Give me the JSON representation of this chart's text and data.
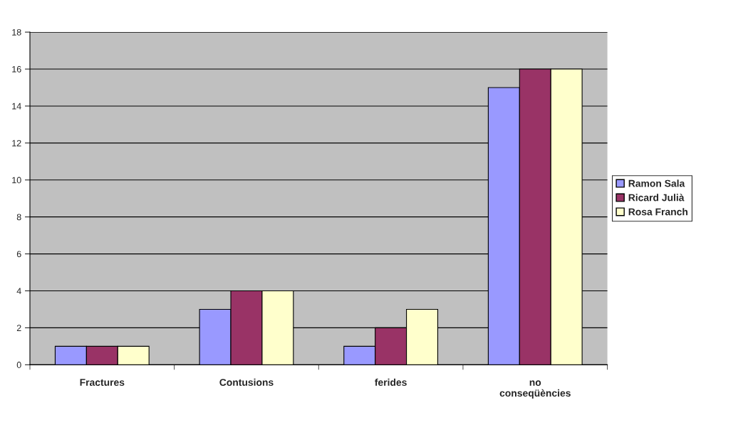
{
  "chart_data": {
    "type": "bar",
    "categories": [
      "Fractures",
      "Contusions",
      "ferides",
      "no conseqüències"
    ],
    "series": [
      {
        "name": "Ramon Sala",
        "color": "#9999ff",
        "values": [
          1,
          3,
          1,
          15
        ]
      },
      {
        "name": "Ricard Julià",
        "color": "#993366",
        "values": [
          1,
          4,
          2,
          16
        ]
      },
      {
        "name": "Rosa Franch",
        "color": "#ffffcc",
        "values": [
          1,
          4,
          3,
          16
        ]
      }
    ],
    "ylim": [
      0,
      18
    ],
    "yticks": [
      0,
      2,
      4,
      6,
      8,
      10,
      12,
      14,
      16,
      18
    ],
    "grid": "y",
    "legend": "right"
  }
}
